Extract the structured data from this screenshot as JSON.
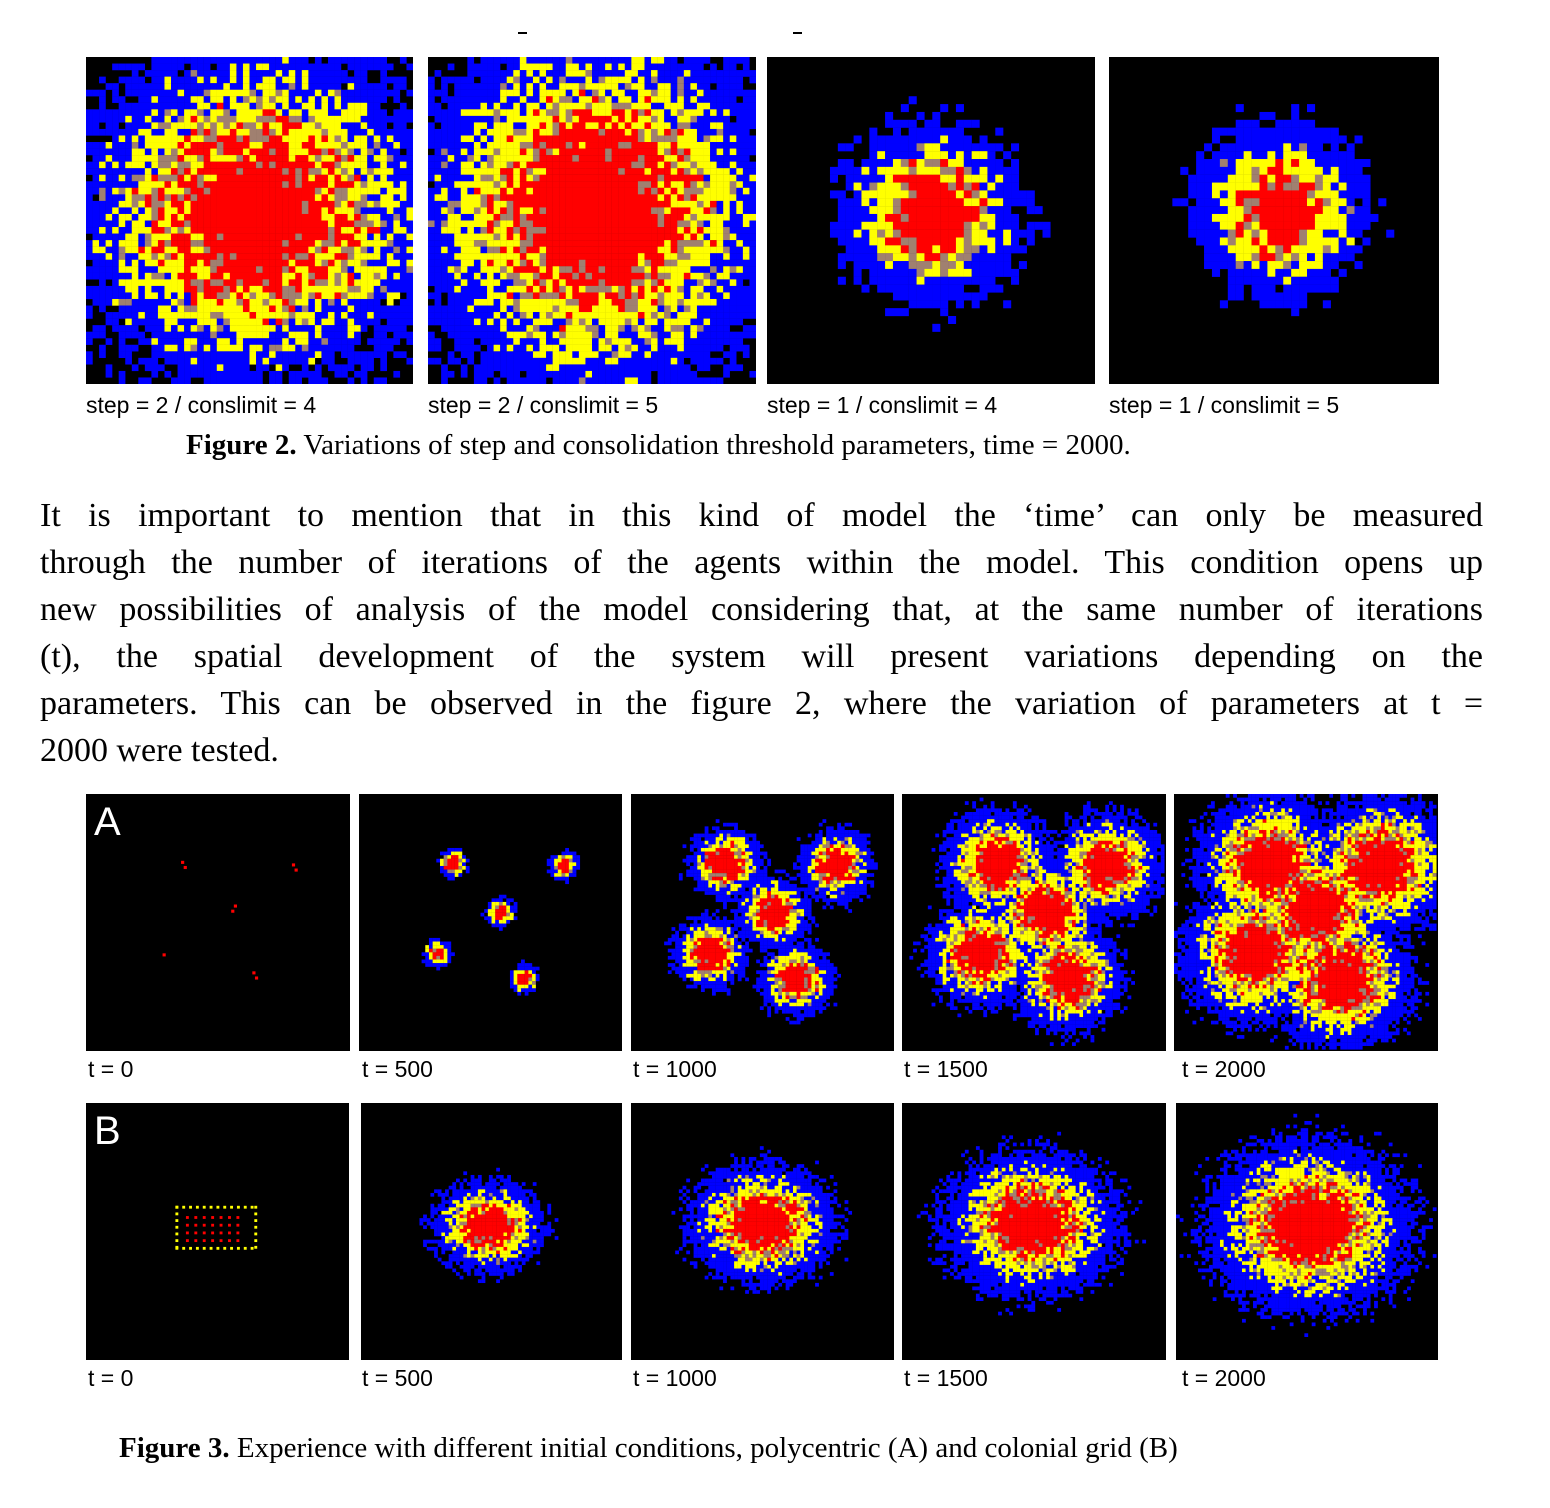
{
  "figure2": {
    "panels": [
      {
        "label": "step = 2 / conslimit = 4"
      },
      {
        "label": "step = 2 / conslimit = 5"
      },
      {
        "label": "step = 1 / conslimit = 4"
      },
      {
        "label": "step = 1 / conslimit = 5"
      }
    ],
    "caption_label": "Figure 2.",
    "caption_text": " Variations of step and consolidation threshold parameters, time = 2000."
  },
  "paragraph": {
    "lines": [
      "It is important to mention that in this kind of model the ‘time’ can only be measured",
      "through the number of iterations of the agents within the model. This condition opens up",
      "new possibilities of analysis of the model considering that, at the same number of iterations",
      "(t), the spatial development of the system will present variations depending on the",
      "parameters. This can be observed in the figure 2, where the variation of parameters at t =",
      "2000 were tested."
    ]
  },
  "figure3": {
    "rows": [
      {
        "letter": "A",
        "labels": [
          "t = 0",
          "t = 500",
          "t = 1000",
          "t = 1500",
          "t = 2000"
        ]
      },
      {
        "letter": "B",
        "labels": [
          "t = 0",
          "t = 500",
          "t = 1000",
          "t = 1500",
          "t = 2000"
        ]
      }
    ],
    "caption_label": "Figure 3.",
    "caption_text": " Experience with different initial conditions, polycentric (A) and colonial grid (B)"
  },
  "colors": {
    "background": "#000000",
    "outer": "#0000ff",
    "mid": "#ffff00",
    "transition": "#a08070",
    "core": "#ff0000"
  }
}
